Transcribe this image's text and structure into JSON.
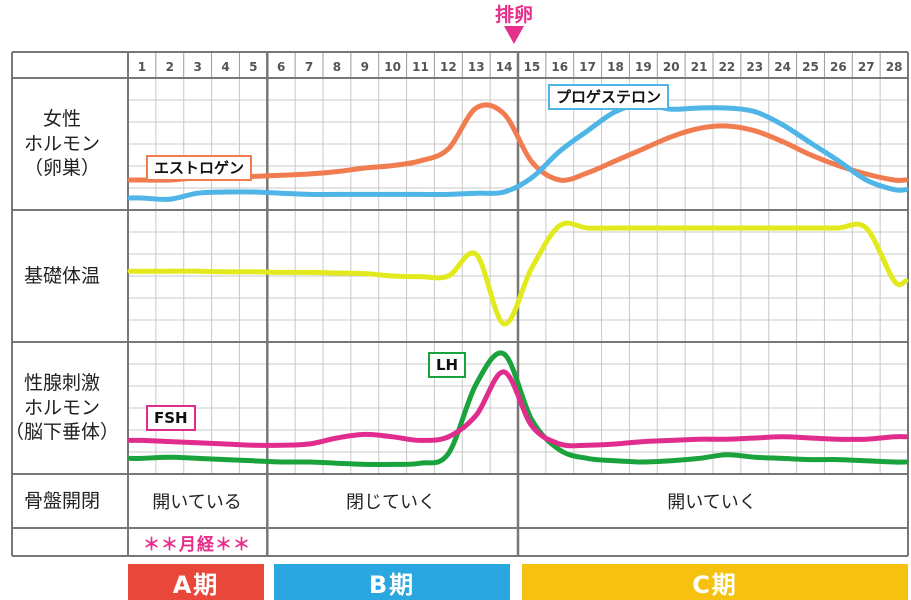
{
  "ovulation_label": "排卵",
  "row_labels": {
    "ovarian": "女性\nホルモン\n（卵巣）",
    "bbt": "基礎体温",
    "pituitary": "性腺刺激\nホルモン\n（脳下垂体）",
    "pelvis": "骨盤開閉"
  },
  "pelvis_states": [
    "開いている",
    "閉じていく",
    "開いていく"
  ],
  "period_note": "＊＊月経＊＊",
  "phases": [
    {
      "label": "A期",
      "color": "#e8473a"
    },
    {
      "label": "B期",
      "color": "#2aa6e0"
    },
    {
      "label": "C期",
      "color": "#f7c20f"
    }
  ],
  "tags": {
    "estrogen": "エストロゲン",
    "progesterone": "プロゲステロン",
    "lh": "LH",
    "fsh": "FSH"
  },
  "chart_data": {
    "type": "line",
    "x": [
      1,
      2,
      3,
      4,
      5,
      6,
      7,
      8,
      9,
      10,
      11,
      12,
      13,
      14,
      15,
      16,
      17,
      18,
      19,
      20,
      21,
      22,
      23,
      24,
      25,
      26,
      27,
      28
    ],
    "x_tick_labels": [
      "1",
      "2",
      "3",
      "4",
      "5",
      "6",
      "7",
      "8",
      "9",
      "10",
      "11",
      "12",
      "13",
      "14",
      "15",
      "16",
      "17",
      "18",
      "19",
      "20",
      "21",
      "22",
      "23",
      "24",
      "25",
      "26",
      "27",
      "28"
    ],
    "panels": [
      {
        "name": "ovarian",
        "series": [
          {
            "name": "エストロゲン",
            "color": "#f07c50",
            "values": [
              2.0,
              2.0,
              2.2,
              2.3,
              2.3,
              2.4,
              2.5,
              2.7,
              3.0,
              3.2,
              3.6,
              4.6,
              8.0,
              7.5,
              3.5,
              2.0,
              2.6,
              3.6,
              4.6,
              5.6,
              6.3,
              6.5,
              6.1,
              5.2,
              4.1,
              3.2,
              2.5,
              2.0
            ]
          },
          {
            "name": "プロゲステロン",
            "color": "#4fb4e6",
            "values": [
              0.5,
              0.4,
              0.9,
              1.0,
              1.0,
              0.9,
              0.8,
              0.8,
              0.8,
              0.8,
              0.8,
              0.8,
              0.9,
              1.0,
              2.2,
              4.4,
              6.1,
              7.7,
              8.3,
              7.9,
              8.0,
              8.0,
              7.7,
              6.6,
              5.1,
              3.6,
              2.0,
              1.2
            ]
          }
        ]
      },
      {
        "name": "bbt",
        "series": [
          {
            "name": "基礎体温",
            "color": "#e2ea1d",
            "values": [
              5.4,
              5.4,
              5.4,
              5.35,
              5.35,
              5.3,
              5.3,
              5.25,
              5.2,
              5.0,
              4.95,
              5.0,
              6.8,
              1.0,
              5.7,
              9.2,
              9.0,
              9.0,
              9.0,
              9.0,
              9.0,
              9.0,
              9.0,
              9.0,
              9.0,
              9.0,
              9.0,
              4.6
            ]
          }
        ]
      },
      {
        "name": "pituitary",
        "series": [
          {
            "name": "LH",
            "color": "#1aa23c",
            "values": [
              0.8,
              0.9,
              0.8,
              0.7,
              0.6,
              0.5,
              0.5,
              0.4,
              0.3,
              0.3,
              0.4,
              1.2,
              7.0,
              9.5,
              4.0,
              1.5,
              0.8,
              0.6,
              0.5,
              0.6,
              0.8,
              1.1,
              0.9,
              0.8,
              0.7,
              0.7,
              0.6,
              0.5
            ]
          },
          {
            "name": "FSH",
            "color": "#e02c8c",
            "values": [
              2.3,
              2.2,
              2.1,
              2.0,
              1.9,
              1.9,
              2.0,
              2.5,
              2.8,
              2.6,
              2.3,
              2.6,
              4.4,
              8.0,
              3.5,
              2.0,
              1.9,
              2.0,
              2.2,
              2.3,
              2.4,
              2.4,
              2.5,
              2.6,
              2.5,
              2.4,
              2.4,
              2.6
            ]
          }
        ]
      }
    ]
  }
}
